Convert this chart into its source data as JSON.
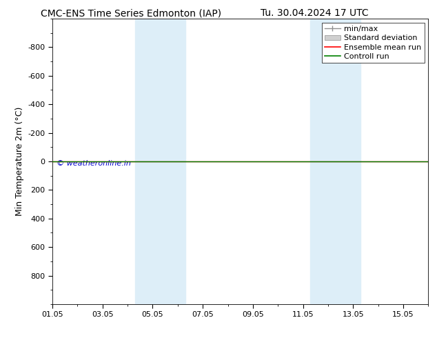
{
  "title_left": "CMC-ENS Time Series Edmonton (IAP)",
  "title_right": "Tu. 30.04.2024 17 UTC",
  "ylabel": "Min Temperature 2m (°C)",
  "ylim": [
    -1000,
    1000
  ],
  "yticks": [
    -800,
    -600,
    -400,
    -200,
    0,
    200,
    400,
    600,
    800
  ],
  "xtick_labels": [
    "01.05",
    "03.05",
    "05.05",
    "07.05",
    "09.05",
    "11.05",
    "13.05",
    "15.05"
  ],
  "xtick_positions": [
    0,
    2,
    4,
    6,
    8,
    10,
    12,
    14
  ],
  "xlim": [
    0,
    15
  ],
  "watermark": "© weatheronline.in",
  "shaded_bands": [
    {
      "x_start": 3.3,
      "x_end": 5.3
    },
    {
      "x_start": 10.3,
      "x_end": 12.3
    }
  ],
  "control_run_y": 0.0,
  "ensemble_mean_y": 0.0,
  "control_run_color": "#008000",
  "ensemble_mean_color": "#ff0000",
  "minmax_color": "#909090",
  "std_dev_color": "#d0d0d0",
  "background_color": "#ffffff",
  "plot_bg_color": "#ffffff",
  "watermark_color": "#0000cc",
  "legend_entries": [
    "min/max",
    "Standard deviation",
    "Ensemble mean run",
    "Controll run"
  ],
  "legend_colors": [
    "#909090",
    "#d0d0d0",
    "#ff0000",
    "#008000"
  ],
  "title_fontsize": 10,
  "tick_fontsize": 8,
  "ylabel_fontsize": 9,
  "legend_fontsize": 8
}
